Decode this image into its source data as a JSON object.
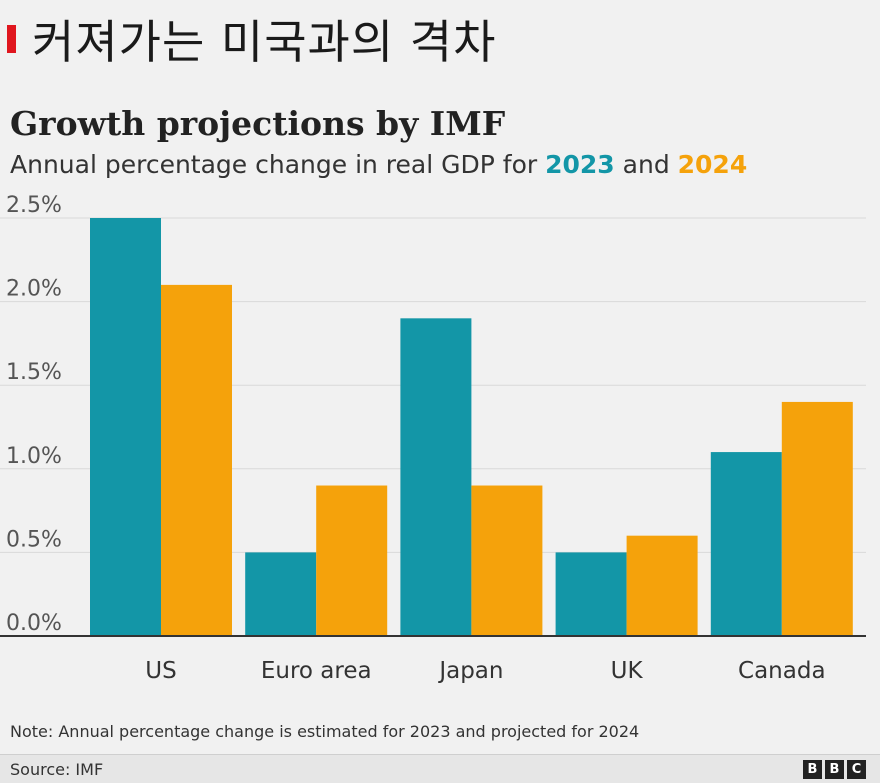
{
  "banner": {
    "title": "커져가는 미국과의 격차",
    "accent_color": "#e0161e"
  },
  "chart_data": {
    "type": "bar",
    "title": "Growth projections by IMF",
    "subtitle_prefix": "Annual percentage change in real GDP for ",
    "subtitle_joiner": " and ",
    "categories": [
      "US",
      "Euro area",
      "Japan",
      "UK",
      "Canada"
    ],
    "series": [
      {
        "name": "2023",
        "color": "#1396a7",
        "values": [
          2.5,
          0.5,
          1.9,
          0.5,
          1.1
        ]
      },
      {
        "name": "2024",
        "color": "#f5a20b",
        "values": [
          2.1,
          0.9,
          0.9,
          0.6,
          1.4
        ]
      }
    ],
    "ylim": [
      0,
      2.5
    ],
    "yticks": [
      "0.0%",
      "0.5%",
      "1.0%",
      "1.5%",
      "2.0%",
      "2.5%"
    ],
    "xlabel": "",
    "ylabel": "",
    "grid": true,
    "legend": "inline in subtitle"
  },
  "note": "Note: Annual percentage change is estimated for 2023 and projected for 2024",
  "source": "Source: IMF",
  "logo": {
    "letters": [
      "B",
      "B",
      "C"
    ]
  }
}
